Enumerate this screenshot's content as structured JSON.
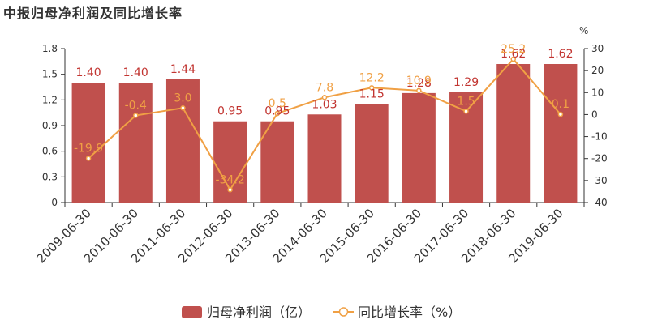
{
  "chart_data": {
    "type": "bar",
    "title": "中报归母净利润及同比增长率",
    "categories": [
      "2009-06-30",
      "2010-06-30",
      "2011-06-30",
      "2012-06-30",
      "2013-06-30",
      "2014-06-30",
      "2015-06-30",
      "2016-06-30",
      "2017-06-30",
      "2018-06-30",
      "2019-06-30"
    ],
    "series": [
      {
        "name": "归母净利润（亿）",
        "type": "bar",
        "axis": "left",
        "values": [
          1.4,
          1.4,
          1.44,
          0.95,
          0.95,
          1.03,
          1.15,
          1.28,
          1.29,
          1.62,
          1.62
        ],
        "labels": [
          "1.40",
          "1.40",
          "1.44",
          "0.95",
          "0.95",
          "1.03",
          "1.15",
          "1.28",
          "1.29",
          "1.62",
          "1.62"
        ]
      },
      {
        "name": "同比增长率（%）",
        "type": "line",
        "axis": "right",
        "values": [
          -19.9,
          -0.4,
          3.0,
          -34.2,
          0.5,
          7.8,
          12.2,
          10.9,
          1.5,
          25.2,
          0.1
        ],
        "labels": [
          "-19.9",
          "-0.4",
          "3.0",
          "-34.2",
          "0.5",
          "7.8",
          "12.2",
          "10.9",
          "1.5",
          "25.2",
          "0.1"
        ]
      }
    ],
    "y_left": {
      "min": 0,
      "max": 1.8,
      "ticks": [
        "0",
        "0.3",
        "0.6",
        "0.9",
        "1.2",
        "1.5",
        "1.8"
      ]
    },
    "y_right": {
      "min": -40,
      "max": 30,
      "unit": "%",
      "ticks": [
        "-40",
        "-30",
        "-20",
        "-10",
        "0",
        "10",
        "20",
        "30"
      ]
    },
    "legend": {
      "position": "bottom"
    },
    "colors": {
      "bar": "#c0504d",
      "bar_label": "#c23531",
      "line": "#f0a044",
      "axis": "#333333"
    }
  }
}
